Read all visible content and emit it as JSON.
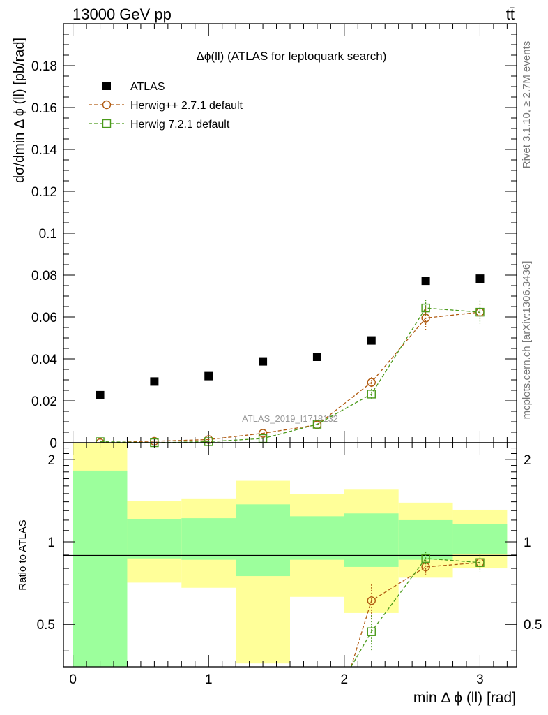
{
  "header": {
    "energy_label": "13000 GeV pp",
    "process_label": "tt̄"
  },
  "side_labels": {
    "rivet": "Rivet 3.1.10, ≥ 2.7M events",
    "mcplots": "mcplots.cern.ch [arXiv:1306.3436]"
  },
  "watermark": "ATLAS_2019_I1718132",
  "chart_data": [
    {
      "type": "scatter",
      "title": "Δϕ(ll) (ATLAS for leptoquark search)",
      "xlabel": "min Δ ϕ (ll) [rad]",
      "ylabel": "dσ/dmin Δ ϕ (ll) [pb/rad]",
      "xlim": [
        -0.07,
        3.27
      ],
      "ylim": [
        0,
        0.2
      ],
      "yticks": [
        "0",
        "0.02",
        "0.04",
        "0.06",
        "0.08",
        "0.1",
        "0.12",
        "0.14",
        "0.16",
        "0.18"
      ],
      "legend_position": "top-left",
      "series": [
        {
          "name": "ATLAS",
          "color": "#000000",
          "marker": "filled-square",
          "x": [
            0.2,
            0.6,
            1.0,
            1.4,
            1.8,
            2.2,
            2.6,
            3.0
          ],
          "y": [
            0.0227,
            0.0292,
            0.0318,
            0.0388,
            0.041,
            0.0488,
            0.0773,
            0.0783
          ]
        },
        {
          "name": "Herwig++ 2.7.1 default",
          "color": "#b05a10",
          "marker": "open-circle",
          "x": [
            0.2,
            0.6,
            1.0,
            1.4,
            1.8,
            2.2,
            2.6,
            3.0
          ],
          "y": [
            0.0,
            0.0007,
            0.0015,
            0.0045,
            0.0085,
            0.0288,
            0.0595,
            0.0623
          ],
          "err": [
            0.0,
            0.0,
            0.0,
            0.0,
            0.0,
            0.0025,
            0.0055,
            0.004
          ]
        },
        {
          "name": "Herwig 7.2.1 default",
          "color": "#4a9a1a",
          "marker": "open-square",
          "x": [
            0.2,
            0.6,
            1.0,
            1.4,
            1.8,
            2.2,
            2.6,
            3.0
          ],
          "y": [
            0.0005,
            0.0,
            0.0005,
            0.002,
            0.0088,
            0.0232,
            0.0643,
            0.0623
          ],
          "err": [
            0.0,
            0.0,
            0.0,
            0.0,
            0.0,
            0.0025,
            0.004,
            0.0055
          ]
        }
      ]
    },
    {
      "type": "scatter",
      "ylabel": "Ratio to ATLAS",
      "xlabel": "min Δ ϕ (ll) [rad]",
      "ylim": [
        0.35,
        2.3
      ],
      "yticks": [
        "0.5",
        "1",
        "2"
      ],
      "xticks": [
        "0",
        "1",
        "2",
        "3"
      ],
      "bands": {
        "edges": [
          0,
          0.4,
          0.8,
          1.2,
          1.6,
          2.0,
          2.4,
          2.8,
          3.2
        ],
        "stat_low": [
          0.35,
          0.87,
          0.86,
          0.75,
          0.86,
          0.81,
          0.86,
          0.9
        ],
        "stat_high": [
          1.82,
          1.21,
          1.22,
          1.37,
          1.24,
          1.27,
          1.2,
          1.16
        ],
        "total_low": [
          0.35,
          0.71,
          0.68,
          0.36,
          0.63,
          0.55,
          0.74,
          0.8
        ],
        "total_high": [
          2.3,
          1.41,
          1.44,
          1.67,
          1.49,
          1.55,
          1.39,
          1.31
        ],
        "stat_color": "#9cff9c",
        "total_color": "#ffff99"
      },
      "series": [
        {
          "name": "Herwig++ 2.7.1 default",
          "color": "#b05a10",
          "x": [
            2.2,
            2.6,
            3.0
          ],
          "y": [
            0.61,
            0.81,
            0.84
          ],
          "err": [
            0.09,
            0.05,
            0.05
          ]
        },
        {
          "name": "Herwig 7.2.1 default",
          "color": "#4a9a1a",
          "x": [
            2.2,
            2.6,
            3.0
          ],
          "y": [
            0.47,
            0.87,
            0.84
          ],
          "err": [
            0.07,
            0.05,
            0.06
          ]
        }
      ]
    }
  ]
}
